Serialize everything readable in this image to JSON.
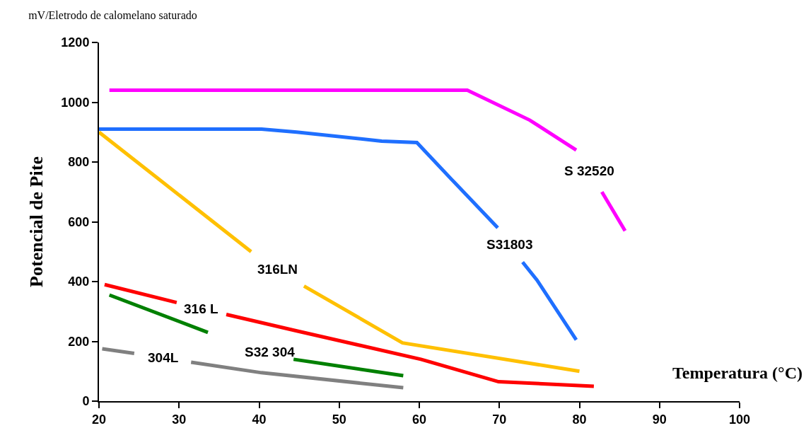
{
  "chart_data": {
    "type": "line",
    "title": "mV/Eletrodo de calomelano saturado",
    "xlabel": "Temperatura (°C)",
    "ylabel": "Potencial de Pite",
    "xlim": [
      20,
      100
    ],
    "xticks": [
      20,
      30,
      40,
      50,
      60,
      70,
      80,
      90,
      100
    ],
    "ylim": [
      0,
      1200
    ],
    "yticks": [
      0,
      200,
      400,
      600,
      800,
      1000,
      1200
    ],
    "grid": false,
    "legend": false,
    "marker": "none",
    "line_style": "solid",
    "series": [
      {
        "name": "S 32520",
        "color": "#ff00ff",
        "x": [
          21.3,
          66,
          73.8,
          79.6,
          81.2,
          82.8,
          85.7
        ],
        "values": [
          1040,
          1040,
          940,
          840,
          null,
          700,
          570
        ]
      },
      {
        "name": "S31803",
        "color": "#1f6fff",
        "x": [
          20,
          40.3,
          44.7,
          55.3,
          59.7,
          64.1,
          69.8,
          71.3,
          72.9,
          74.7,
          79.6
        ],
        "values": [
          910,
          910,
          900,
          870,
          865,
          740,
          580,
          null,
          465,
          405,
          205
        ]
      },
      {
        "name": "316LN",
        "color": "#ffc000",
        "x": [
          20,
          39,
          42.3,
          45.6,
          57.9,
          80
        ],
        "values": [
          900,
          500,
          null,
          385,
          195,
          100
        ]
      },
      {
        "name": "316 L",
        "color": "#ff0000",
        "x": [
          20.7,
          29.7,
          32.8,
          35.9,
          44.7,
          60.2,
          69.9,
          81.8
        ],
        "values": [
          390,
          330,
          null,
          290,
          235,
          140,
          65,
          50
        ]
      },
      {
        "name": "S32 304",
        "color": "#008000",
        "x": [
          21.3,
          33.6,
          41.3,
          44.3,
          58
        ],
        "values": [
          355,
          230,
          null,
          140,
          85
        ]
      },
      {
        "name": "304L",
        "color": "#808080",
        "x": [
          20.4,
          24.4,
          28,
          31.5,
          40.3,
          58
        ],
        "values": [
          175,
          160,
          null,
          130,
          95,
          45
        ]
      }
    ]
  }
}
